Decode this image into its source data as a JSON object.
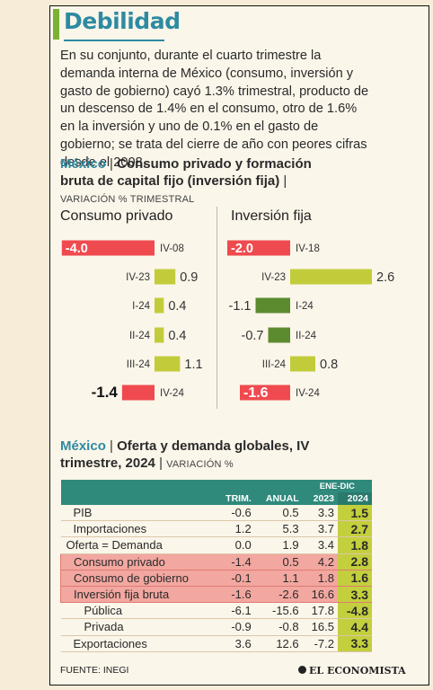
{
  "title": "Debilidad",
  "intro": "En su conjunto, durante el cuarto trimestre la demanda interna de México (consumo, inversión y gasto de gobierno) cayó 1.3% trimestral, producto de un descenso de 1.4% en el consumo, otro de 1.6% en la inversión y uno de 0.1% en el gasto de gobierno; se trata del cierre de año con peores cifras desde el 2008.",
  "section1": {
    "country": "México",
    "sep": "|",
    "title": "Consumo privado y formación bruta de capital fijo (inversión fija)",
    "sep2": "|",
    "unit": "VARIACIÓN % TRIMESTRAL"
  },
  "section2": {
    "country": "México",
    "sep": "|",
    "title": "Oferta y demanda globales, IV trimestre, 2024",
    "sep2": "|",
    "unit": "VARIACIÓN %"
  },
  "chart_data": [
    {
      "type": "bar",
      "title": "Consumo privado",
      "categories": [
        "IV-08",
        "IV-23",
        "I-24",
        "II-24",
        "III-24",
        "IV-24"
      ],
      "values": [
        -4.0,
        0.9,
        0.4,
        0.4,
        1.1,
        -1.4
      ],
      "labels": [
        "-4.0",
        "0.9",
        "0.4",
        "0.4",
        "1.1",
        "-1.4"
      ]
    },
    {
      "type": "bar",
      "title": "Inversión fija",
      "categories": [
        "IV-18",
        "IV-23",
        "I-24",
        "II-24",
        "III-24",
        "IV-24"
      ],
      "values": [
        -2.0,
        2.6,
        -1.1,
        -0.7,
        0.8,
        -1.6
      ],
      "labels": [
        "-2.0",
        "2.6",
        "-1.1",
        "-0.7",
        "0.8",
        "-1.6"
      ]
    },
    {
      "type": "table",
      "group_header": "ENE-DIC",
      "columns": [
        "",
        "TRIM.",
        "ANUAL",
        "2023",
        "2024"
      ],
      "rows": [
        {
          "label": "PIB",
          "values": [
            "-0.6",
            "0.5",
            "3.3",
            "1.5"
          ],
          "indent": 1,
          "highlight": false
        },
        {
          "label": "Importaciones",
          "values": [
            "1.2",
            "5.3",
            "3.7",
            "2.7"
          ],
          "indent": 1,
          "highlight": false
        },
        {
          "label": "Oferta = Demanda",
          "values": [
            "0.0",
            "1.9",
            "3.4",
            "1.8"
          ],
          "indent": 0,
          "highlight": false
        },
        {
          "label": "Consumo privado",
          "values": [
            "-1.4",
            "0.5",
            "4.2",
            "2.8"
          ],
          "indent": 1,
          "highlight": true
        },
        {
          "label": "Consumo de gobierno",
          "values": [
            "-0.1",
            "1.1",
            "1.8",
            "1.6"
          ],
          "indent": 1,
          "highlight": true
        },
        {
          "label": "Inversión fija bruta",
          "values": [
            "-1.6",
            "-2.6",
            "16.6",
            "3.3"
          ],
          "indent": 1,
          "highlight": true
        },
        {
          "label": "Pública",
          "values": [
            "-6.1",
            "-15.6",
            "17.8",
            "-4.8"
          ],
          "indent": 2,
          "highlight": false
        },
        {
          "label": "Privada",
          "values": [
            "-0.9",
            "-0.8",
            "16.5",
            "4.4"
          ],
          "indent": 2,
          "highlight": false
        },
        {
          "label": "Exportaciones",
          "values": [
            "3.6",
            "12.6",
            "-7.2",
            "3.3"
          ],
          "indent": 1,
          "highlight": false
        }
      ]
    }
  ],
  "footer": "FUENTE: INEGI",
  "logo": "EL ECONOMISTA",
  "colors": {
    "negative": "#ef4a4f",
    "positive": "#c2cc3b",
    "green": "#5c8b2f",
    "accent": "#2e8aa1"
  }
}
